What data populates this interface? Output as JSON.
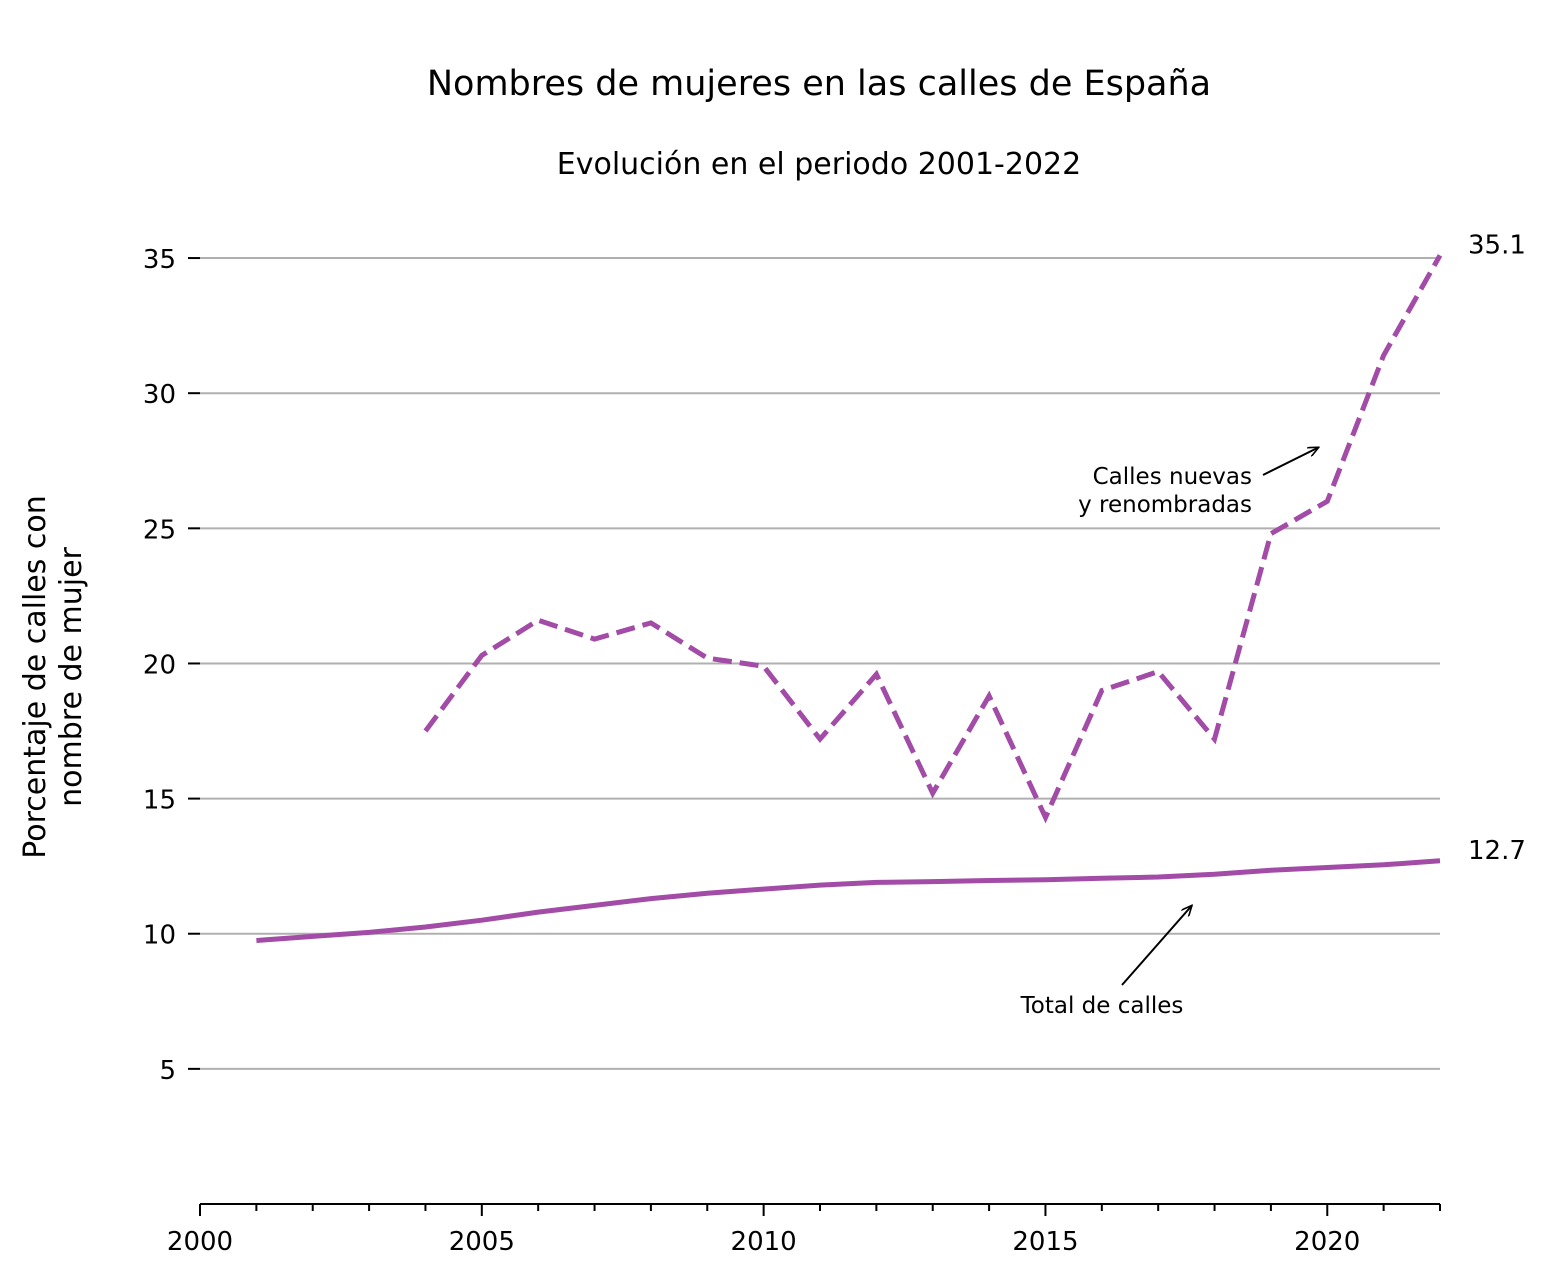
{
  "chart_data": {
    "type": "line",
    "title": "Nombres de mujeres en las calles de España",
    "subtitle": "Evolución en el periodo 2001-2022",
    "ylabel_line1": "Porcentaje de calles con",
    "ylabel_line2": "nombre de mujer",
    "xlabel": "",
    "xlim": [
      2000,
      2022
    ],
    "ylim": [
      0,
      37
    ],
    "x_ticks": [
      2000,
      2005,
      2010,
      2015,
      2020
    ],
    "y_ticks": [
      5,
      10,
      15,
      20,
      25,
      30,
      35
    ],
    "grid": "horizontal",
    "colors": {
      "series": "#a24ba7",
      "grid": "#b0b0b0",
      "axis": "#000000"
    },
    "series": [
      {
        "key": "nuevas",
        "style": "dashed",
        "x": [
          2004,
          2005,
          2006,
          2007,
          2008,
          2009,
          2010,
          2011,
          2012,
          2013,
          2014,
          2015,
          2016,
          2017,
          2018,
          2019,
          2020,
          2021,
          2022
        ],
        "y": [
          17.5,
          20.3,
          21.6,
          20.9,
          21.5,
          20.2,
          19.9,
          17.2,
          19.6,
          15.2,
          18.8,
          14.3,
          19.0,
          19.7,
          17.2,
          24.8,
          26.0,
          31.4,
          35.1
        ]
      },
      {
        "key": "total",
        "style": "solid",
        "x": [
          2001,
          2002,
          2003,
          2004,
          2005,
          2006,
          2007,
          2008,
          2009,
          2010,
          2011,
          2012,
          2013,
          2014,
          2015,
          2016,
          2017,
          2018,
          2019,
          2020,
          2021,
          2022
        ],
        "y": [
          9.75,
          9.9,
          10.05,
          10.25,
          10.5,
          10.8,
          11.05,
          11.3,
          11.5,
          11.65,
          11.8,
          11.9,
          11.93,
          11.97,
          12.0,
          12.05,
          12.1,
          12.2,
          12.35,
          12.45,
          12.55,
          12.7
        ]
      }
    ],
    "end_labels": [
      {
        "text": "35.1",
        "x": 2022,
        "y": 35.1
      },
      {
        "text": "12.7",
        "x": 2022,
        "y": 12.7
      }
    ],
    "annotations": [
      {
        "line1": "Calles nuevas",
        "line2": "y renombradas",
        "target_x": 2019.85,
        "target_y": 28.0
      },
      {
        "line1": "Total de calles",
        "line2": "",
        "target_x": 2017.6,
        "target_y": 11.05
      }
    ]
  }
}
